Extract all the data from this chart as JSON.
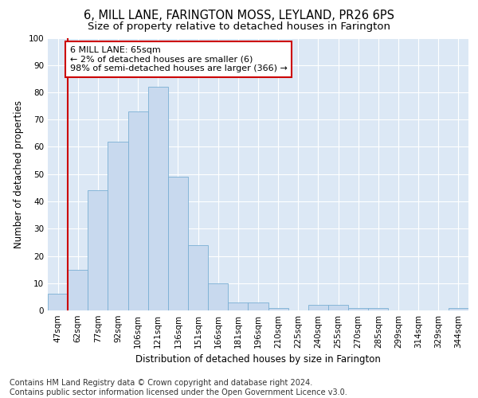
{
  "title": "6, MILL LANE, FARINGTON MOSS, LEYLAND, PR26 6PS",
  "subtitle": "Size of property relative to detached houses in Farington",
  "xlabel": "Distribution of detached houses by size in Farington",
  "ylabel": "Number of detached properties",
  "categories": [
    "47sqm",
    "62sqm",
    "77sqm",
    "92sqm",
    "106sqm",
    "121sqm",
    "136sqm",
    "151sqm",
    "166sqm",
    "181sqm",
    "196sqm",
    "210sqm",
    "225sqm",
    "240sqm",
    "255sqm",
    "270sqm",
    "285sqm",
    "299sqm",
    "314sqm",
    "329sqm",
    "344sqm"
  ],
  "values": [
    6,
    15,
    44,
    62,
    73,
    82,
    49,
    24,
    10,
    3,
    3,
    1,
    0,
    2,
    2,
    1,
    1,
    0,
    0,
    0,
    1
  ],
  "bar_color": "#c8d9ee",
  "bar_edge_color": "#7aafd4",
  "vline_x_index": 1,
  "vline_color": "#cc0000",
  "annotation_line1": "6 MILL LANE: 65sqm",
  "annotation_line2": "← 2% of detached houses are smaller (6)",
  "annotation_line3": "98% of semi-detached houses are larger (366) →",
  "annotation_box_color": "#ffffff",
  "annotation_box_edge": "#cc0000",
  "ylim": [
    0,
    100
  ],
  "yticks": [
    0,
    10,
    20,
    30,
    40,
    50,
    60,
    70,
    80,
    90,
    100
  ],
  "background_color": "#dce8f5",
  "grid_color": "#ffffff",
  "footer_text": "Contains HM Land Registry data © Crown copyright and database right 2024.\nContains public sector information licensed under the Open Government Licence v3.0.",
  "title_fontsize": 10.5,
  "subtitle_fontsize": 9.5,
  "axis_label_fontsize": 8.5,
  "tick_fontsize": 7.5,
  "annotation_fontsize": 8,
  "footer_fontsize": 7
}
